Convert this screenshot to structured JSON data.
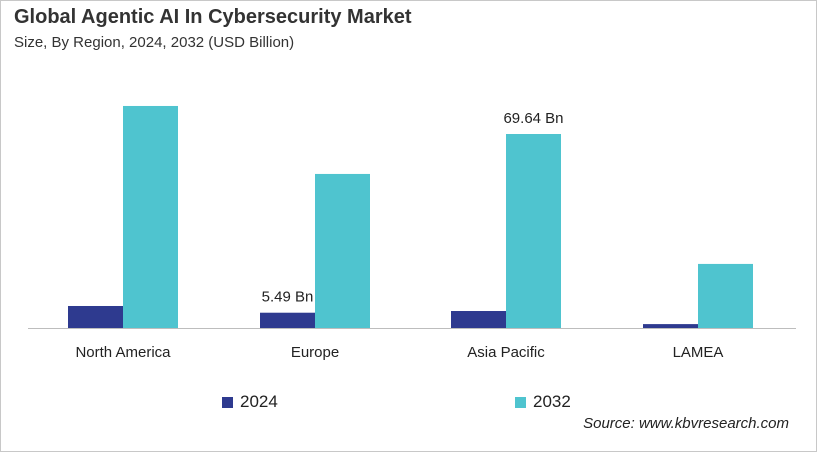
{
  "title": "Global Agentic AI In Cybersecurity Market",
  "subtitle": "Size, By Region, 2024, 2032 (USD Billion)",
  "source": "Source: www.kbvresearch.com",
  "chart_data": {
    "type": "bar",
    "categories": [
      "North America",
      "Europe",
      "Asia Pacific",
      "LAMEA"
    ],
    "series": [
      {
        "name": "2024",
        "color": "#2e3a8f",
        "values": [
          7.9,
          5.49,
          6.1,
          1.4
        ]
      },
      {
        "name": "2032",
        "color": "#4fc4cf",
        "values": [
          79.7,
          55.3,
          69.64,
          23.0
        ]
      }
    ],
    "data_labels": [
      {
        "series": 0,
        "category": 1,
        "text": "5.49 Bn"
      },
      {
        "series": 1,
        "category": 2,
        "text": "69.64 Bn"
      }
    ],
    "ylim": [
      0,
      80
    ],
    "grid": false,
    "legend_position": "bottom"
  }
}
